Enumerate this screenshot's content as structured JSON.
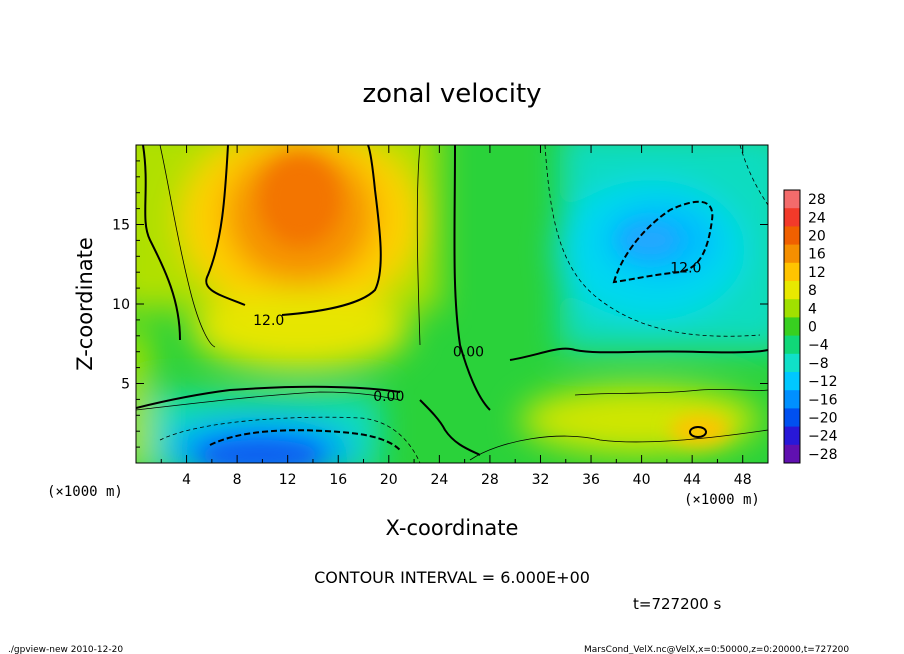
{
  "chart_data": {
    "type": "heatmap",
    "title": "zonal velocity",
    "xlabel": "X-coordinate",
    "ylabel": "Z-coordinate",
    "x_unit_left": "(×1000 m)",
    "x_unit_right": "(×1000 m)",
    "xlim": [
      0,
      50
    ],
    "ylim": [
      0,
      20
    ],
    "x_ticks": [
      4,
      8,
      12,
      16,
      20,
      24,
      28,
      32,
      36,
      40,
      44,
      48
    ],
    "y_ticks": [
      5,
      10,
      15
    ],
    "colorbar": {
      "labels": [
        "28",
        "24",
        "20",
        "16",
        "12",
        "8",
        "4",
        "0",
        "−4",
        "−8",
        "−12",
        "−16",
        "−20",
        "−24",
        "−28"
      ],
      "levels": [
        28,
        24,
        20,
        16,
        12,
        8,
        4,
        0,
        -4,
        -8,
        -12,
        -16,
        -20,
        -24,
        -28
      ],
      "colors": [
        "#f36b6b",
        "#f23a2a",
        "#f06000",
        "#f58f00",
        "#ffc400",
        "#e8e800",
        "#a0e000",
        "#38d020",
        "#10d878",
        "#10e0c8",
        "#00c8ff",
        "#0090ff",
        "#0050f0",
        "#2818d8",
        "#6010b0"
      ]
    },
    "field_features": [
      {
        "type": "max",
        "x": 13,
        "z": 14.5,
        "value": 20
      },
      {
        "type": "min",
        "x": 41.5,
        "z": 13.5,
        "value": -14
      },
      {
        "type": "min",
        "x": 12,
        "z": 1.0,
        "value": -18
      },
      {
        "type": "max",
        "x": 43,
        "z": 2.0,
        "value": 14
      }
    ],
    "contour_labels": [
      {
        "text": "12.0",
        "x": 10.5,
        "z": 9.0
      },
      {
        "text": "12.0",
        "x": 43.5,
        "z": 12.3
      },
      {
        "text": "0.00",
        "x": 20.0,
        "z": 4.2
      },
      {
        "text": "0.00",
        "x": 26.3,
        "z": 7.0
      }
    ],
    "contour_interval_text": "CONTOUR INTERVAL = 6.000E+00",
    "time_text": "t=727200 s"
  },
  "footer": {
    "left": "./gpview-new   2010-12-20",
    "right": "MarsCond_VelX.nc@VelX,x=0:50000,z=0:20000,t=727200"
  }
}
